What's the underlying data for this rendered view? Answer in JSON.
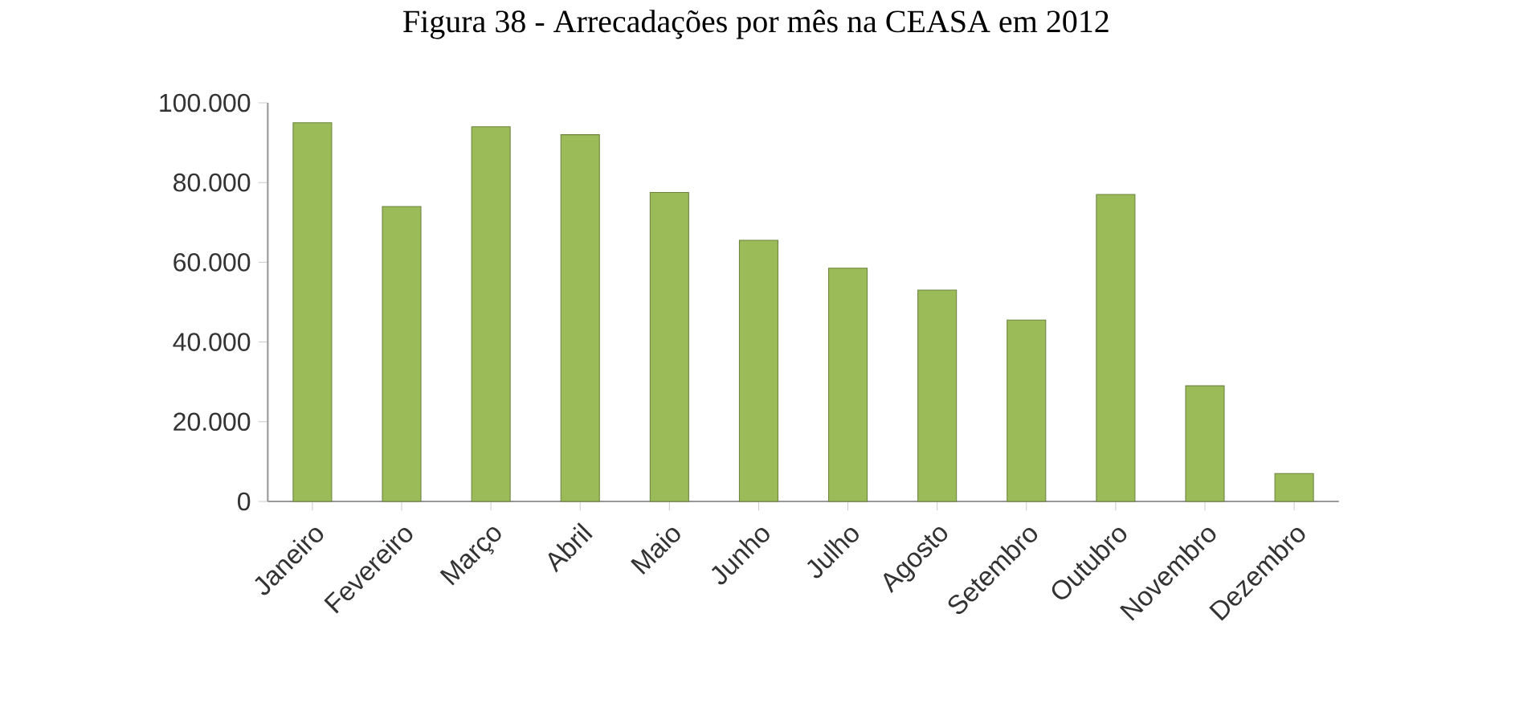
{
  "chart_data": {
    "type": "bar",
    "title": "Figura 38 - Arrecadações por mês na CEASA em 2012",
    "categories": [
      "Janeiro",
      "Fevereiro",
      "Março",
      "Abril",
      "Maio",
      "Junho",
      "Julho",
      "Agosto",
      "Setembro",
      "Outubro",
      "Novembro",
      "Dezembro"
    ],
    "values": [
      95000,
      74000,
      94000,
      92000,
      77500,
      65500,
      58500,
      53000,
      45500,
      77000,
      29000,
      7000
    ],
    "color": "#9bbb59",
    "ylim": [
      0,
      100000
    ],
    "yticks": [
      {
        "value": 0,
        "label": "0"
      },
      {
        "value": 20000,
        "label": "20.000"
      },
      {
        "value": 40000,
        "label": "40.000"
      },
      {
        "value": 60000,
        "label": "60.000"
      },
      {
        "value": 80000,
        "label": "80.000"
      },
      {
        "value": 100000,
        "label": "100.000"
      }
    ],
    "grid": false
  }
}
